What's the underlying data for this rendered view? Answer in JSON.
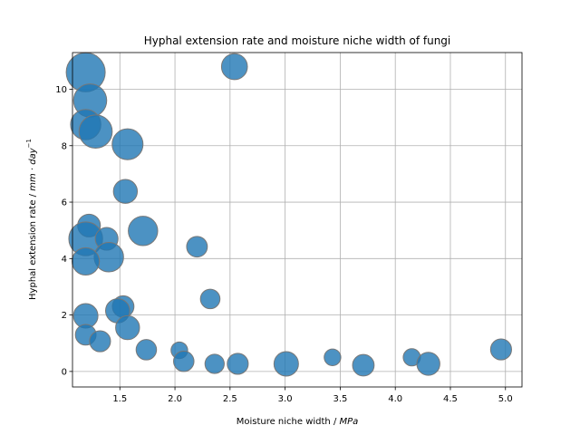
{
  "chart_data": {
    "type": "scatter",
    "title": "Hyphal extension rate and moisture niche width of fungi",
    "xlabel": "Moisture niche width / ",
    "xlabel_unit": "MPa",
    "ylabel": "Hyphal extension rate / ",
    "ylabel_unit": "mm · day",
    "ylabel_exponent": "−1",
    "xlim": [
      1.07,
      5.15
    ],
    "ylim": [
      -0.55,
      11.3
    ],
    "xticks": [
      1.5,
      2.0,
      2.5,
      3.0,
      3.5,
      4.0,
      4.5,
      5.0
    ],
    "xtick_labels": [
      "1.5",
      "2.0",
      "2.5",
      "3.0",
      "3.5",
      "4.0",
      "4.5",
      "5.0"
    ],
    "yticks": [
      0,
      2,
      4,
      6,
      8,
      10
    ],
    "ytick_labels": [
      "0",
      "2",
      "4",
      "6",
      "8",
      "10"
    ],
    "grid": true,
    "marker_color": "#1f77b4",
    "marker_alpha": 0.8,
    "marker_edge": "#777777",
    "points": [
      {
        "x": 1.19,
        "y": 10.6,
        "s": 1
      },
      {
        "x": 1.23,
        "y": 9.6,
        "s": 0.8
      },
      {
        "x": 1.19,
        "y": 8.75,
        "s": 0.7
      },
      {
        "x": 1.28,
        "y": 8.5,
        "s": 0.8
      },
      {
        "x": 1.57,
        "y": 8.05,
        "s": 0.72
      },
      {
        "x": 2.54,
        "y": 10.8,
        "s": 0.55
      },
      {
        "x": 1.55,
        "y": 6.38,
        "s": 0.48
      },
      {
        "x": 1.22,
        "y": 5.17,
        "s": 0.44
      },
      {
        "x": 1.71,
        "y": 4.98,
        "s": 0.67
      },
      {
        "x": 1.19,
        "y": 4.7,
        "s": 0.82
      },
      {
        "x": 1.38,
        "y": 4.7,
        "s": 0.44
      },
      {
        "x": 1.4,
        "y": 4.05,
        "s": 0.67
      },
      {
        "x": 1.19,
        "y": 3.9,
        "s": 0.6
      },
      {
        "x": 2.2,
        "y": 4.42,
        "s": 0.37
      },
      {
        "x": 2.32,
        "y": 2.57,
        "s": 0.33
      },
      {
        "x": 1.53,
        "y": 2.3,
        "s": 0.4
      },
      {
        "x": 1.48,
        "y": 2.15,
        "s": 0.49
      },
      {
        "x": 1.19,
        "y": 1.97,
        "s": 0.5
      },
      {
        "x": 1.57,
        "y": 1.55,
        "s": 0.48
      },
      {
        "x": 1.19,
        "y": 1.3,
        "s": 0.37
      },
      {
        "x": 1.32,
        "y": 1.07,
        "s": 0.38
      },
      {
        "x": 1.74,
        "y": 0.77,
        "s": 0.36
      },
      {
        "x": 2.04,
        "y": 0.75,
        "s": 0.23
      },
      {
        "x": 2.08,
        "y": 0.36,
        "s": 0.36
      },
      {
        "x": 2.36,
        "y": 0.27,
        "s": 0.32
      },
      {
        "x": 2.57,
        "y": 0.27,
        "s": 0.38
      },
      {
        "x": 3.01,
        "y": 0.27,
        "s": 0.5
      },
      {
        "x": 3.43,
        "y": 0.5,
        "s": 0.23
      },
      {
        "x": 3.71,
        "y": 0.22,
        "s": 0.4
      },
      {
        "x": 4.15,
        "y": 0.5,
        "s": 0.25
      },
      {
        "x": 4.3,
        "y": 0.27,
        "s": 0.45
      },
      {
        "x": 4.96,
        "y": 0.78,
        "s": 0.38
      }
    ]
  }
}
